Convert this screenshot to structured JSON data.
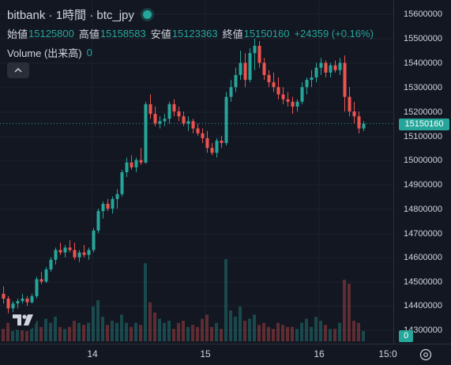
{
  "header": {
    "title": "bitbank · 1時間 · btc_jpy",
    "ohlc": [
      {
        "key": "始値",
        "value": "15125800"
      },
      {
        "key": "高値",
        "value": "15158583"
      },
      {
        "key": "安値",
        "value": "15123363"
      },
      {
        "key": "終値",
        "value": "15150160"
      }
    ],
    "change": "+24359 (+0.16%)",
    "volume_label": "Volume (出来高)",
    "volume_value": "0"
  },
  "price_axis": {
    "ticks": [
      "15600000",
      "15500000",
      "15400000",
      "15300000",
      "15200000",
      "15100000",
      "15000000",
      "14900000",
      "14800000",
      "14700000",
      "14600000",
      "14500000",
      "14400000",
      "14300000"
    ],
    "last_price_label": "15150160",
    "volume_label": "0"
  },
  "time_axis": {
    "ticks": [
      "14",
      "15",
      "16",
      "15:0"
    ]
  },
  "colors": {
    "up": "#26a69a",
    "down": "#ef5350",
    "background": "#131722",
    "grid": "#1e222d"
  },
  "icons": {
    "logo": "tradingview-logo",
    "settings": "gear-icon",
    "collapse": "chevron-up-icon",
    "status": "live-dot-icon"
  },
  "chart_data": {
    "type": "candlestick",
    "interval": "1h",
    "symbol": "btc_jpy",
    "ylim": [
      14240000,
      15650000
    ],
    "candles": [
      [
        14450000,
        14480000,
        14410000,
        14430000
      ],
      [
        14430000,
        14440000,
        14370000,
        14390000
      ],
      [
        14390000,
        14420000,
        14360000,
        14410000
      ],
      [
        14410000,
        14430000,
        14390000,
        14420000
      ],
      [
        14420000,
        14450000,
        14410000,
        14430000
      ],
      [
        14430000,
        14440000,
        14400000,
        14415000
      ],
      [
        14415000,
        14450000,
        14410000,
        14440000
      ],
      [
        14440000,
        14520000,
        14430000,
        14510000
      ],
      [
        14510000,
        14540000,
        14490000,
        14500000
      ],
      [
        14500000,
        14560000,
        14495000,
        14550000
      ],
      [
        14550000,
        14600000,
        14540000,
        14590000
      ],
      [
        14590000,
        14640000,
        14570000,
        14630000
      ],
      [
        14630000,
        14660000,
        14610000,
        14620000
      ],
      [
        14620000,
        14650000,
        14600000,
        14640000
      ],
      [
        14640000,
        14670000,
        14620000,
        14630000
      ],
      [
        14630000,
        14660000,
        14590000,
        14600000
      ],
      [
        14600000,
        14630000,
        14580000,
        14620000
      ],
      [
        14620000,
        14650000,
        14600000,
        14610000
      ],
      [
        14610000,
        14640000,
        14590000,
        14630000
      ],
      [
        14630000,
        14720000,
        14620000,
        14710000
      ],
      [
        14710000,
        14800000,
        14700000,
        14790000
      ],
      [
        14790000,
        14830000,
        14760000,
        14820000
      ],
      [
        14820000,
        14840000,
        14790000,
        14800000
      ],
      [
        14800000,
        14850000,
        14780000,
        14840000
      ],
      [
        14840000,
        14880000,
        14800000,
        14860000
      ],
      [
        14860000,
        14960000,
        14850000,
        14950000
      ],
      [
        14950000,
        15010000,
        14930000,
        14990000
      ],
      [
        14990000,
        15020000,
        14960000,
        14970000
      ],
      [
        14970000,
        15010000,
        14950000,
        15000000
      ],
      [
        15000000,
        15050000,
        14980000,
        14990000
      ],
      [
        14990000,
        15240000,
        14985000,
        15230000
      ],
      [
        15230000,
        15270000,
        15170000,
        15190000
      ],
      [
        15190000,
        15220000,
        15140000,
        15150000
      ],
      [
        15150000,
        15180000,
        15130000,
        15160000
      ],
      [
        15160000,
        15190000,
        15140000,
        15170000
      ],
      [
        15170000,
        15240000,
        15150000,
        15230000
      ],
      [
        15230000,
        15250000,
        15180000,
        15200000
      ],
      [
        15200000,
        15220000,
        15160000,
        15180000
      ],
      [
        15180000,
        15200000,
        15140000,
        15150000
      ],
      [
        15150000,
        15180000,
        15120000,
        15160000
      ],
      [
        15160000,
        15170000,
        15110000,
        15130000
      ],
      [
        15130000,
        15150000,
        15100000,
        15110000
      ],
      [
        15110000,
        15130000,
        15070000,
        15090000
      ],
      [
        15090000,
        15120000,
        15030000,
        15050000
      ],
      [
        15050000,
        15070000,
        15020000,
        15030000
      ],
      [
        15030000,
        15090000,
        15010000,
        15080000
      ],
      [
        15080000,
        15100000,
        15050000,
        15070000
      ],
      [
        15070000,
        15280000,
        15060000,
        15260000
      ],
      [
        15260000,
        15330000,
        15240000,
        15300000
      ],
      [
        15300000,
        15380000,
        15280000,
        15350000
      ],
      [
        15350000,
        15450000,
        15330000,
        15400000
      ],
      [
        15400000,
        15440000,
        15300000,
        15330000
      ],
      [
        15330000,
        15460000,
        15320000,
        15440000
      ],
      [
        15440000,
        15500000,
        15370000,
        15470000
      ],
      [
        15470000,
        15490000,
        15380000,
        15400000
      ],
      [
        15400000,
        15420000,
        15330000,
        15350000
      ],
      [
        15350000,
        15370000,
        15300000,
        15320000
      ],
      [
        15320000,
        15360000,
        15280000,
        15300000
      ],
      [
        15300000,
        15340000,
        15250000,
        15270000
      ],
      [
        15270000,
        15300000,
        15230000,
        15250000
      ],
      [
        15250000,
        15280000,
        15220000,
        15240000
      ],
      [
        15240000,
        15260000,
        15190000,
        15220000
      ],
      [
        15220000,
        15250000,
        15200000,
        15240000
      ],
      [
        15240000,
        15320000,
        15230000,
        15300000
      ],
      [
        15300000,
        15340000,
        15270000,
        15330000
      ],
      [
        15330000,
        15370000,
        15300000,
        15340000
      ],
      [
        15340000,
        15400000,
        15320000,
        15380000
      ],
      [
        15380000,
        15420000,
        15350000,
        15400000
      ],
      [
        15400000,
        15410000,
        15340000,
        15360000
      ],
      [
        15360000,
        15400000,
        15340000,
        15390000
      ],
      [
        15390000,
        15410000,
        15360000,
        15370000
      ],
      [
        15370000,
        15420000,
        15350000,
        15400000
      ],
      [
        15400000,
        15430000,
        15200000,
        15260000
      ],
      [
        15260000,
        15300000,
        15180000,
        15200000
      ],
      [
        15200000,
        15240000,
        15150000,
        15180000
      ],
      [
        15180000,
        15200000,
        15110000,
        15130000
      ],
      [
        15130000,
        15160000,
        15120000,
        15150160
      ]
    ],
    "volumes": [
      [
        0.3,
        "down"
      ],
      [
        0.45,
        "down"
      ],
      [
        0.25,
        "up"
      ],
      [
        0.3,
        "up"
      ],
      [
        0.35,
        "down"
      ],
      [
        0.25,
        "down"
      ],
      [
        0.35,
        "up"
      ],
      [
        0.5,
        "up"
      ],
      [
        0.35,
        "down"
      ],
      [
        0.55,
        "up"
      ],
      [
        0.45,
        "up"
      ],
      [
        0.6,
        "up"
      ],
      [
        0.35,
        "down"
      ],
      [
        0.3,
        "up"
      ],
      [
        0.35,
        "down"
      ],
      [
        0.5,
        "down"
      ],
      [
        0.45,
        "up"
      ],
      [
        0.4,
        "down"
      ],
      [
        0.45,
        "up"
      ],
      [
        0.85,
        "up"
      ],
      [
        1.0,
        "up"
      ],
      [
        0.6,
        "up"
      ],
      [
        0.4,
        "down"
      ],
      [
        0.5,
        "up"
      ],
      [
        0.45,
        "up"
      ],
      [
        0.65,
        "up"
      ],
      [
        0.45,
        "up"
      ],
      [
        0.35,
        "down"
      ],
      [
        0.45,
        "up"
      ],
      [
        0.4,
        "down"
      ],
      [
        1.9,
        "up"
      ],
      [
        0.95,
        "down"
      ],
      [
        0.7,
        "down"
      ],
      [
        0.55,
        "up"
      ],
      [
        0.45,
        "up"
      ],
      [
        0.5,
        "up"
      ],
      [
        0.3,
        "down"
      ],
      [
        0.45,
        "down"
      ],
      [
        0.5,
        "down"
      ],
      [
        0.35,
        "up"
      ],
      [
        0.4,
        "down"
      ],
      [
        0.35,
        "down"
      ],
      [
        0.55,
        "down"
      ],
      [
        0.65,
        "down"
      ],
      [
        0.35,
        "down"
      ],
      [
        0.45,
        "up"
      ],
      [
        0.3,
        "down"
      ],
      [
        2.0,
        "up"
      ],
      [
        0.75,
        "up"
      ],
      [
        0.6,
        "up"
      ],
      [
        0.85,
        "up"
      ],
      [
        0.5,
        "down"
      ],
      [
        0.55,
        "up"
      ],
      [
        0.65,
        "up"
      ],
      [
        0.4,
        "down"
      ],
      [
        0.45,
        "down"
      ],
      [
        0.35,
        "down"
      ],
      [
        0.3,
        "down"
      ],
      [
        0.45,
        "down"
      ],
      [
        0.4,
        "down"
      ],
      [
        0.35,
        "down"
      ],
      [
        0.35,
        "down"
      ],
      [
        0.3,
        "up"
      ],
      [
        0.45,
        "up"
      ],
      [
        0.55,
        "up"
      ],
      [
        0.35,
        "up"
      ],
      [
        0.6,
        "up"
      ],
      [
        0.5,
        "up"
      ],
      [
        0.4,
        "down"
      ],
      [
        0.3,
        "up"
      ],
      [
        0.3,
        "down"
      ],
      [
        0.45,
        "up"
      ],
      [
        1.5,
        "down"
      ],
      [
        1.4,
        "down"
      ],
      [
        0.5,
        "down"
      ],
      [
        0.45,
        "down"
      ],
      [
        0.25,
        "up"
      ]
    ]
  }
}
